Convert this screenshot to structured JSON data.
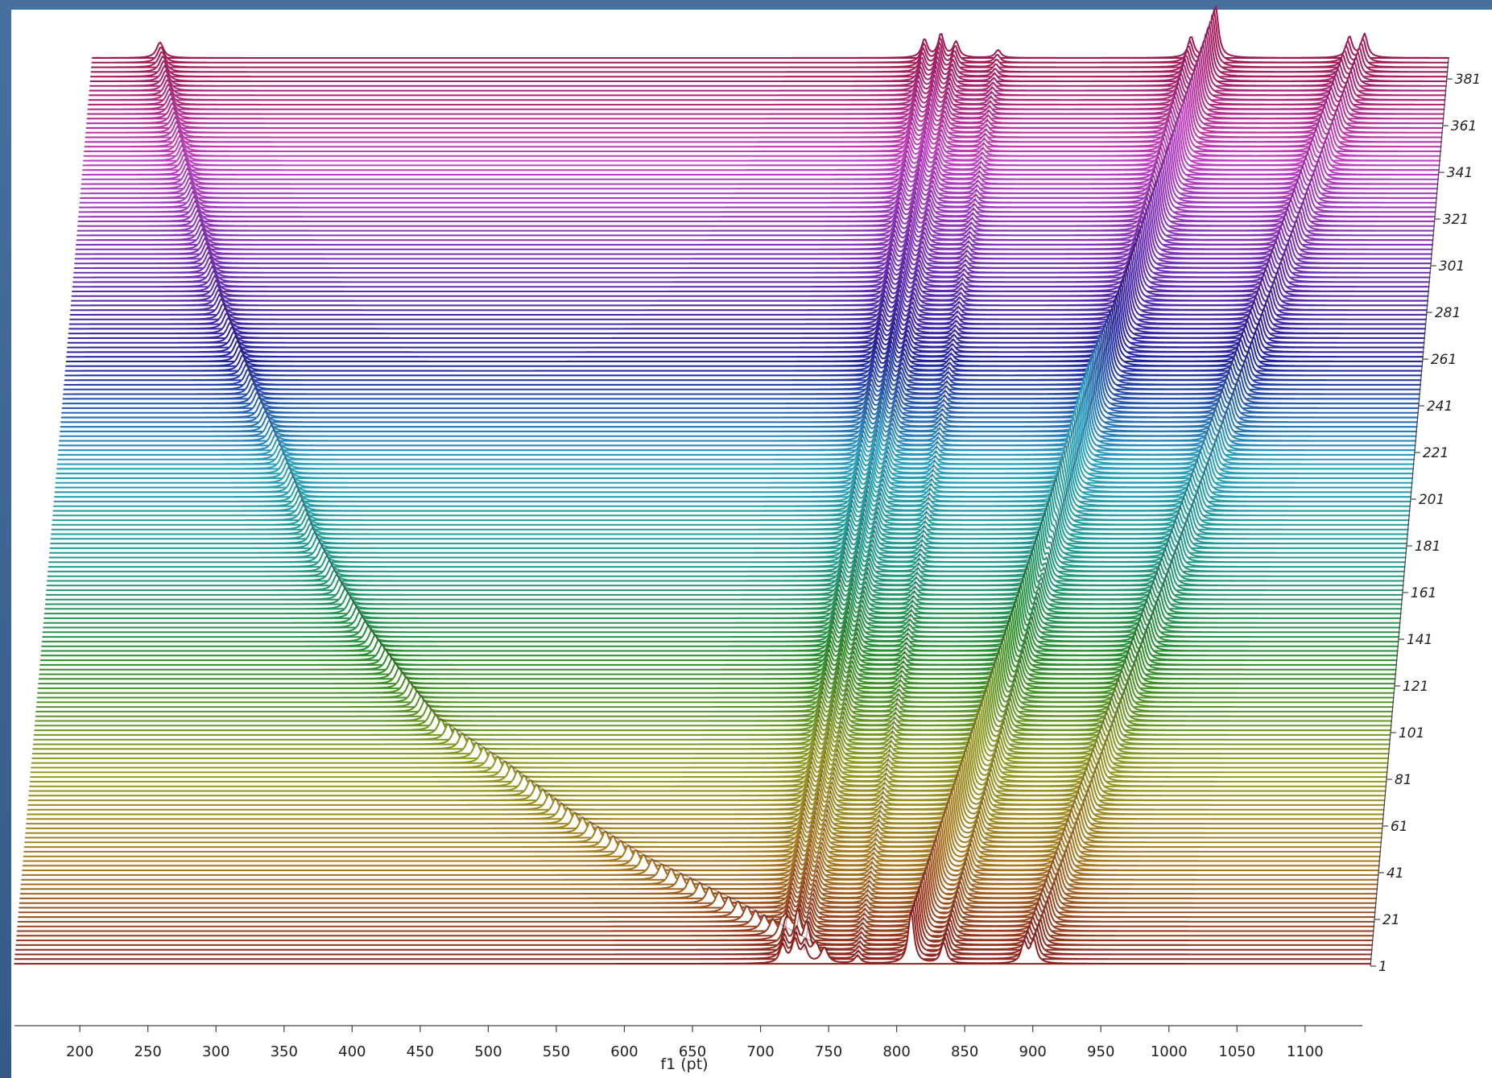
{
  "chart_data": {
    "type": "stacked-spectra",
    "xlabel": "f1 (pt)",
    "xlim": [
      152,
      1148
    ],
    "xticks": [
      200,
      250,
      300,
      350,
      400,
      450,
      500,
      550,
      600,
      650,
      700,
      750,
      800,
      850,
      900,
      950,
      1000,
      1050,
      1100
    ],
    "zlim": [
      1,
      390
    ],
    "zticks": [
      1,
      21,
      41,
      61,
      81,
      101,
      121,
      141,
      161,
      181,
      201,
      221,
      241,
      261,
      281,
      301,
      321,
      341,
      361,
      381
    ],
    "colormap": [
      "#8e1f1f",
      "#a8781e",
      "#8f9a22",
      "#2a8f2a",
      "#1f9a8a",
      "#2aa0c0",
      "#2424a0",
      "#7a30b8",
      "#c040c0",
      "#a01850"
    ],
    "series": [
      {
        "z": [
          1,
          21,
          41,
          61,
          81,
          101,
          121,
          141,
          161,
          181,
          201,
          221,
          241,
          261,
          281,
          301,
          321,
          341,
          361,
          381
        ],
        "positions": [
          750,
          684,
          611,
          552,
          503,
          448,
          418,
          390,
          366,
          345,
          329,
          312,
          294,
          278,
          262,
          250,
          238,
          227,
          216,
          206
        ],
        "intensity": 0.3
      },
      {
        "z": [
          1,
          381
        ],
        "positions": [
          716,
          762
        ],
        "intensity": 0.35
      },
      {
        "z": [
          1,
          381
        ],
        "positions": [
          725,
          774
        ],
        "intensity": 0.45
      },
      {
        "z": [
          1,
          381
        ],
        "positions": [
          732,
          785
        ],
        "intensity": 0.3
      },
      {
        "z": [
          1,
          381
        ],
        "positions": [
          771,
          816
        ],
        "intensity": 0.15
      },
      {
        "z": [
          1,
          381
        ],
        "positions": [
          810,
          973
        ],
        "intensity": 1.0
      },
      {
        "z": [
          1,
          381
        ],
        "positions": [
          834,
          956
        ],
        "intensity": 0.4
      },
      {
        "z": [
          1,
          381
        ],
        "positions": [
          893,
          1071
        ],
        "intensity": 0.4
      },
      {
        "z": [
          1,
          381
        ],
        "positions": [
          900,
          1082
        ],
        "intensity": 0.45
      }
    ]
  }
}
